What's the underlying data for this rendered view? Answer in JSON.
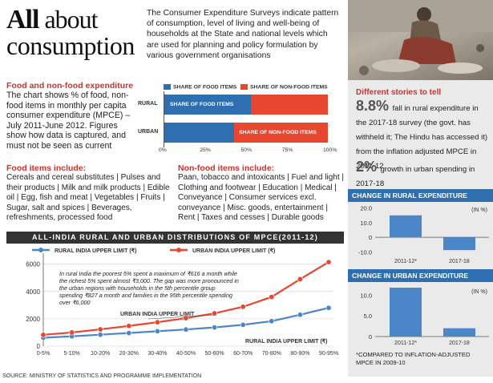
{
  "header": {
    "title_bold": "All",
    "title_rest": " about",
    "title_line2": "consumption",
    "intro": "The Consumer Expenditure Surveys indicate pattern of consumption, level of living and well-being of households at the State and national levels which are used for planning and policy formulation by various government organisations"
  },
  "food_section": {
    "heading": "Food and non-food expenditure",
    "text": "The chart shows % of food, non-food items in monthly per capita consumer expenditure (MPCE) – July 2011-June 2012. Figures show how data is captured, and must not be seen as current"
  },
  "share_chart": {
    "legend_food": "SHARE OF FOOD ITEMS",
    "legend_nonfood": "SHARE OF NON-FOOD ITEMS",
    "rows": [
      {
        "label": "RURAL",
        "food": 53,
        "bar_text": "SHARE OF FOOD ITEMS"
      },
      {
        "label": "URBAN",
        "food": 43,
        "bar_text": "SHARE OF NON-FOOD ITEMS"
      }
    ],
    "ticks": [
      "0%",
      "25%",
      "50%",
      "75%",
      "100%"
    ],
    "colors": {
      "food": "#2f6fb0",
      "nonfood": "#e8472f"
    }
  },
  "items": {
    "food_heading": "Food items include:",
    "food_text": "Cereals and cereal substitutes | Pulses and their products | Milk and milk products | Edible oil | Egg, fish and meat | Vegetables | Fruits | Sugar, salt and spices | Beverages, refreshments, processed food",
    "nonfood_heading": "Non-food items include:",
    "nonfood_text": "Paan, tobacco and intoxicants | Fuel and light | Clothing and footwear | Education | Medical | Conveyance | Consumer services excl. conveyance | Misc. goods, entertainment | Rent | Taxes and cesses | Durable goods"
  },
  "chart_data": [
    {
      "type": "line",
      "title": "ALL-INDIA RURAL AND URBAN DISTRIBUTIONS OF MPCE(2011-12)",
      "categories": [
        "0-5%",
        "5-10%",
        "10-20%",
        "20-30%",
        "30-40%",
        "40-50%",
        "50-60%",
        "60-70%",
        "70-80%",
        "80-90%",
        "90-95%"
      ],
      "series": [
        {
          "name": "RURAL INDIA UPPER LIMIT (₹)",
          "color": "#4a86c8",
          "values": [
            616,
            720,
            840,
            960,
            1090,
            1220,
            1370,
            1560,
            1830,
            2300,
            2800
          ]
        },
        {
          "name": "URBAN INDIA UPPER LIMIT (₹)",
          "color": "#e8472f",
          "values": [
            827,
            1000,
            1230,
            1480,
            1750,
            2050,
            2400,
            2880,
            3600,
            4900,
            6150
          ]
        }
      ],
      "yticks": [
        0,
        2000,
        4000,
        6000
      ],
      "ylim": [
        0,
        6800
      ],
      "annotation": "In rural India the poorest 5% spent a maximum of ₹616 a month while the richest 5% spent almost ₹3,000. The gap was more pronounced in the urban regions with households in the 5th percentile group spending ₹827 a month and families in the 95th percentile spending over ₹6,000",
      "urban_callout": "URBAN INDIA UPPER LIMIT",
      "rural_callout": "RURAL INDIA UPPER LIMIT (₹)"
    },
    {
      "type": "bar",
      "title": "CHANGE IN RURAL EXPENDITURE",
      "unit": "(IN %)",
      "categories": [
        "2011-12*",
        "2017-18"
      ],
      "values": [
        15,
        -8.8
      ],
      "yticks": [
        "20.0",
        "10.0",
        "0",
        "-10.0"
      ],
      "ylim": [
        -12,
        22
      ],
      "color": "#4a86c8"
    },
    {
      "type": "bar",
      "title": "CHANGE IN URBAN EXPENDITURE",
      "unit": "(IN %)",
      "categories": [
        "2011-12*",
        "2017-18"
      ],
      "values": [
        11.8,
        2
      ],
      "yticks": [
        "10.0",
        "5.0",
        "0"
      ],
      "ylim": [
        0,
        12
      ],
      "color": "#4a86c8"
    }
  ],
  "right_panel": {
    "heading": "Different stories to tell",
    "stat1_num": "8.8%",
    "stat1_text": "fall in rural expenditure in the 2017-18 survey (the govt. has withheld it; The Hindu has accessed it) from the inflation adjusted MPCE in 2011-12",
    "stat2_num": "2%",
    "stat2_text": "growth in urban spending in 2017-18",
    "footnote": "*COMPARED TO INFLATION-ADJUSTED MPCE IN 2009-10"
  },
  "source": "SOURCE: MINISTRY OF STATISTICS AND PROGRAMME IMPLEMENTATION"
}
